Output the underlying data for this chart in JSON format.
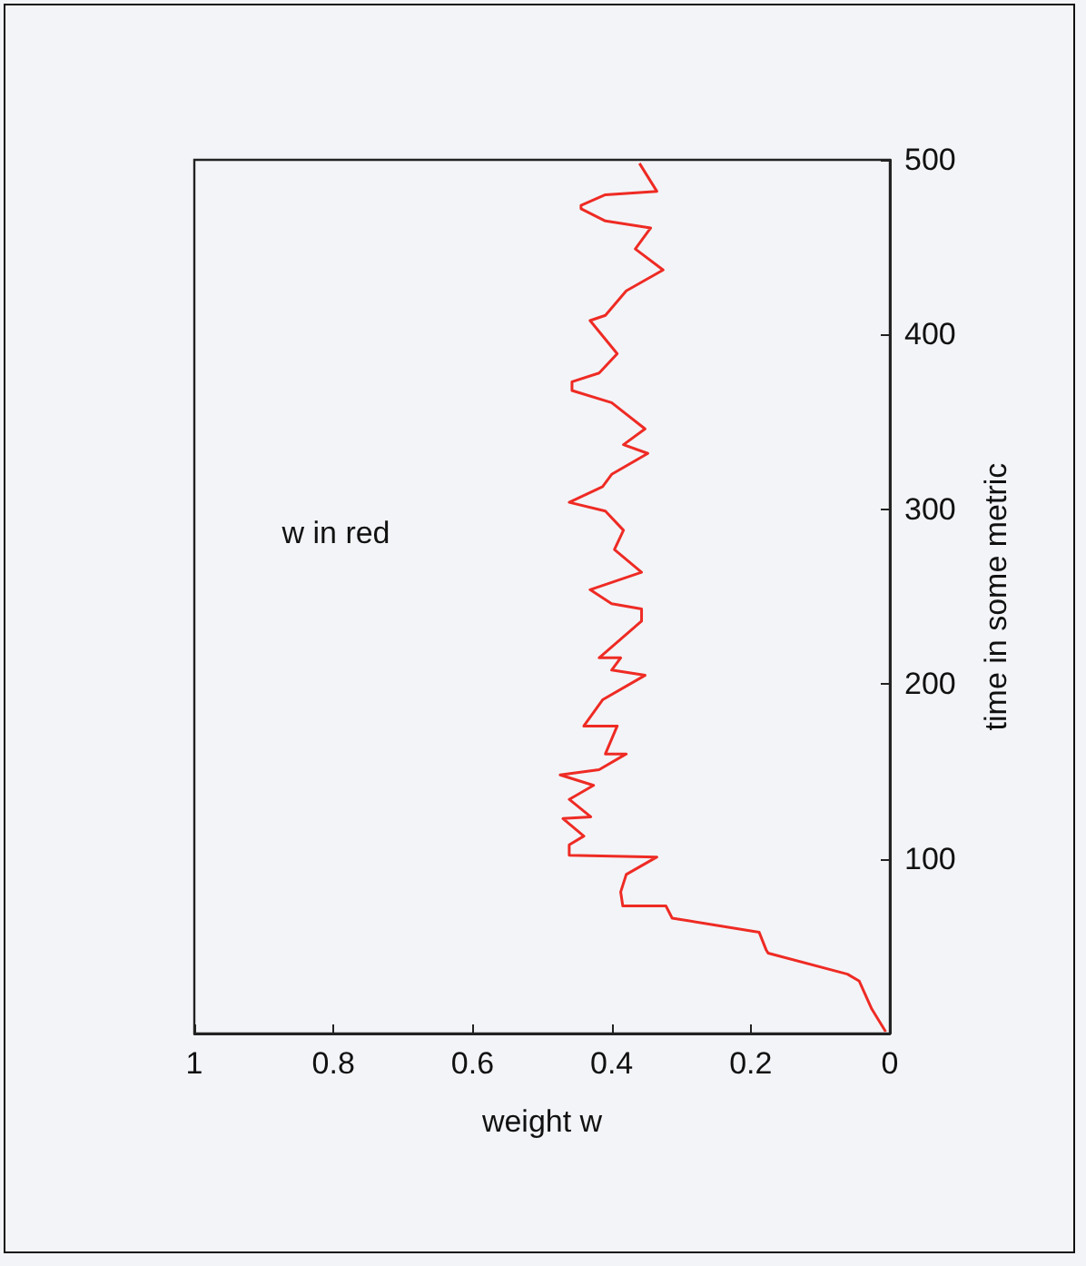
{
  "chart_data": {
    "type": "line",
    "title": "w in red",
    "xlabel": "weight w",
    "ylabel": "time in some metric",
    "color": "#ee2b24",
    "x": [
      0.006,
      0.026,
      0.044,
      0.061,
      0.175,
      0.178,
      0.188,
      0.313,
      0.322,
      0.384,
      0.387,
      0.379,
      0.335,
      0.461,
      0.461,
      0.44,
      0.47,
      0.43,
      0.461,
      0.426,
      0.474,
      0.418,
      0.379,
      0.409,
      0.392,
      0.44,
      0.413,
      0.352,
      0.4,
      0.387,
      0.418,
      0.357,
      0.357,
      0.4,
      0.431,
      0.357,
      0.396,
      0.383,
      0.409,
      0.461,
      0.413,
      0.4,
      0.348,
      0.383,
      0.352,
      0.4,
      0.457,
      0.457,
      0.418,
      0.392,
      0.431,
      0.409,
      0.379,
      0.326,
      0.366,
      0.344,
      0.409,
      0.444,
      0.444,
      0.409,
      0.335,
      0.36
    ],
    "values": [
      1,
      14,
      30,
      34,
      46,
      48,
      58,
      66,
      73,
      73,
      81,
      91,
      101,
      102,
      108,
      113,
      123,
      124,
      134,
      142,
      148,
      151,
      160,
      160,
      176,
      176,
      191,
      205,
      208,
      215,
      215,
      236,
      243,
      246,
      254,
      264,
      277,
      288,
      299,
      304,
      313,
      320,
      332,
      337,
      346,
      361,
      368,
      373,
      378,
      389,
      408,
      411,
      425,
      437,
      449,
      461,
      465,
      472,
      474,
      480,
      482,
      498
    ],
    "xlim": [
      1,
      0
    ],
    "xticks": [
      1,
      0.8,
      0.6,
      0.4,
      0.2,
      0
    ],
    "ylim": [
      0,
      500
    ],
    "yticks": [
      100,
      200,
      300,
      400,
      500
    ]
  }
}
